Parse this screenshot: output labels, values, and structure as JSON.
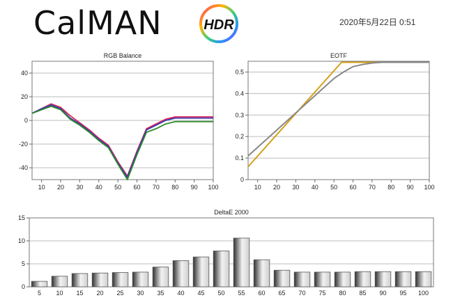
{
  "header": {
    "logo_text": "CalMAN",
    "badge_text": "HDR",
    "date": "2020年5月22日 0:51"
  },
  "colors": {
    "red": "#e0245e",
    "green": "#2e8b2e",
    "blue": "#3a3aa8",
    "eotf_target": "#d4a017",
    "eotf_measured": "#888888",
    "bar_dark": "#303030",
    "bar_light": "#f2f2f2"
  },
  "chart_data": [
    {
      "type": "line",
      "title": "RGB Balance",
      "x": [
        5,
        10,
        15,
        20,
        25,
        30,
        35,
        40,
        45,
        50,
        55,
        60,
        65,
        70,
        75,
        80,
        85,
        90,
        95,
        100
      ],
      "xticks": [
        10,
        20,
        30,
        40,
        50,
        60,
        70,
        80,
        90,
        100
      ],
      "yticks": [
        40,
        20,
        0,
        -20,
        -40
      ],
      "xlim": [
        5,
        100
      ],
      "ylim": [
        -50,
        50
      ],
      "grid": "horizontal",
      "series": [
        {
          "color": "red",
          "values": [
            6,
            10,
            14,
            11,
            4,
            -2,
            -8,
            -15,
            -21,
            -35,
            -47,
            -26,
            -7,
            -3,
            1,
            3,
            3,
            3,
            3,
            3
          ]
        },
        {
          "color": "blue",
          "values": [
            6,
            10,
            13,
            10,
            2,
            -3,
            -9,
            -16,
            -22,
            -36,
            -48,
            -27,
            -8,
            -4,
            0,
            2,
            2,
            2,
            2,
            2
          ]
        },
        {
          "color": "green",
          "values": [
            6,
            9,
            12,
            9,
            1,
            -4,
            -10,
            -17,
            -23,
            -37,
            -50,
            -29,
            -10,
            -7,
            -3,
            -1,
            -1,
            -1,
            -1,
            -1
          ]
        }
      ]
    },
    {
      "type": "line",
      "title": "EOTF",
      "xticks": [
        10,
        20,
        30,
        40,
        50,
        60,
        70,
        80,
        90,
        100
      ],
      "yticks": [
        "0.5",
        "0.4",
        "0.3",
        "0.2",
        "0.1",
        "0"
      ],
      "xlim": [
        5,
        100
      ],
      "ylim": [
        0,
        0.55
      ],
      "grid": "horizontal",
      "series": [
        {
          "color": "eotf_target",
          "x": [
            5,
            54,
            100
          ],
          "values": [
            0.06,
            0.545,
            0.545
          ]
        },
        {
          "color": "eotf_measured",
          "x": [
            5,
            10,
            20,
            30,
            40,
            50,
            55,
            60,
            65,
            70,
            75,
            80,
            90,
            100
          ],
          "values": [
            0.11,
            0.15,
            0.23,
            0.31,
            0.39,
            0.47,
            0.5,
            0.525,
            0.535,
            0.542,
            0.545,
            0.545,
            0.545,
            0.545
          ]
        }
      ]
    },
    {
      "type": "bar",
      "title": "DeltaE 2000",
      "categories": [
        "5",
        "10",
        "15",
        "20",
        "25",
        "30",
        "35",
        "40",
        "45",
        "50",
        "55",
        "60",
        "65",
        "70",
        "75",
        "80",
        "85",
        "90",
        "95",
        "100"
      ],
      "values": [
        1.2,
        2.3,
        2.9,
        3.0,
        3.1,
        3.2,
        4.3,
        5.7,
        6.5,
        7.8,
        10.6,
        5.9,
        3.6,
        3.2,
        3.2,
        3.2,
        3.3,
        3.3,
        3.3,
        3.3
      ],
      "yticks": [
        15,
        10,
        5,
        0
      ],
      "ylim": [
        0,
        15
      ],
      "grid": "horizontal"
    }
  ]
}
